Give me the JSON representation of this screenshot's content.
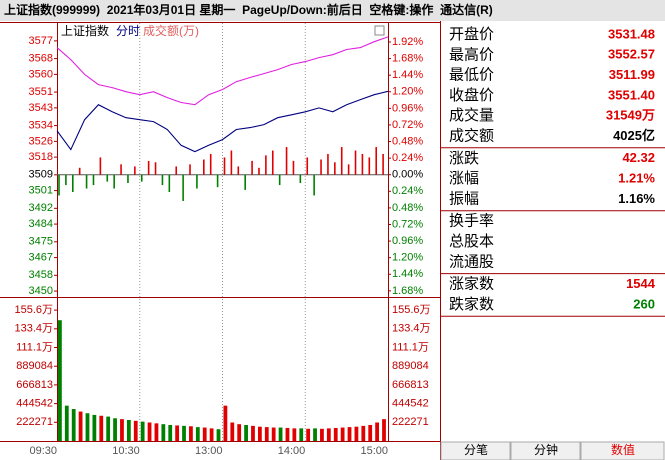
{
  "title_bar": "上证指数(999999)  2021年03月01日 星期一  PageUp/Down:前后日  空格键:操作  通达信(R)",
  "chart_data": [
    {
      "type": "line",
      "title": "上证指数",
      "x": [
        0,
        10,
        20,
        30,
        40,
        50,
        60,
        70,
        80,
        90,
        100,
        110,
        120,
        130,
        140,
        150,
        160,
        170,
        180,
        190,
        200,
        210,
        220,
        230,
        240
      ],
      "series": [
        {
          "name": "分时",
          "color": "#000080",
          "values": [
            3531.4,
            3521.8,
            3537,
            3544.6,
            3541,
            3538,
            3537,
            3536,
            3532,
            3524,
            3520.8,
            3524,
            3526.9,
            3532,
            3533,
            3534.5,
            3538,
            3539.5,
            3541,
            3543,
            3541,
            3544.6,
            3547.2,
            3549.7,
            3551.4
          ]
        },
        {
          "color": "#e020e0",
          "values": [
            3573.6,
            3567.5,
            3560,
            3554.8,
            3553.3,
            3551.2,
            3549.7,
            3551.2,
            3548.2,
            3545.7,
            3544.6,
            3549.7,
            3552.3,
            3556.3,
            3558.4,
            3560.4,
            3562.4,
            3565,
            3566.5,
            3568.5,
            3570,
            3572.6,
            3573.6,
            3576.6,
            3579
          ]
        }
      ],
      "strength": {
        "x": [
          0,
          5,
          10,
          15,
          20,
          25,
          30,
          35,
          40,
          45,
          50,
          55,
          60,
          65,
          70,
          75,
          80,
          85,
          90,
          95,
          100,
          105,
          110,
          115,
          120,
          125,
          130,
          135,
          140,
          145,
          150,
          155,
          160,
          165,
          170,
          175,
          180,
          185,
          190,
          195,
          200,
          205,
          210,
          215,
          220,
          225,
          230,
          235
        ],
        "values": [
          -0.3,
          -0.15,
          -0.25,
          0.1,
          -0.2,
          -0.15,
          0.25,
          -0.1,
          -0.2,
          0.15,
          -0.12,
          0.12,
          -0.1,
          0.2,
          0.18,
          -0.15,
          -0.25,
          0.12,
          -0.38,
          0.15,
          -0.2,
          0.22,
          0.3,
          -0.18,
          0.25,
          0.35,
          0.12,
          -0.22,
          0.2,
          0.1,
          0.28,
          0.35,
          -0.15,
          0.4,
          0.2,
          -0.12,
          0.25,
          -0.3,
          0.22,
          0.3,
          0.18,
          0.4,
          0.15,
          0.35,
          0.3,
          0.25,
          0.4,
          0.3
        ]
      },
      "up_color": "#e00000",
      "down_color": "#008000",
      "xlim": [
        0,
        240
      ],
      "ylim": [
        3448,
        3581
      ],
      "yticks": [
        3577,
        3568,
        3560,
        3551,
        3543,
        3534,
        3526,
        3518,
        3509,
        3501,
        3492,
        3484,
        3475,
        3467,
        3458,
        3450
      ],
      "y2lim": [
        -1.74,
        2.05
      ],
      "y2ticks": [
        {
          "value": 1.92,
          "label": "1.92%"
        },
        {
          "value": 1.68,
          "label": "1.68%"
        },
        {
          "value": 1.44,
          "label": "1.44%"
        },
        {
          "value": 1.2,
          "label": "1.20%"
        },
        {
          "value": 0.96,
          "label": "0.96%"
        },
        {
          "value": 0.72,
          "label": "0.72%"
        },
        {
          "value": 0.48,
          "label": "0.48%"
        },
        {
          "value": 0.24,
          "label": "0.24%"
        },
        {
          "value": 0,
          "label": "0.00%"
        },
        {
          "value": -0.24,
          "label": "0.24%"
        },
        {
          "value": -0.48,
          "label": "0.48%"
        },
        {
          "value": -0.72,
          "label": "0.72%"
        },
        {
          "value": -0.96,
          "label": "0.96%"
        },
        {
          "value": -1.2,
          "label": "1.20%"
        },
        {
          "value": -1.44,
          "label": "1.44%"
        },
        {
          "value": -1.68,
          "label": "1.68%"
        }
      ]
    },
    {
      "type": "bar",
      "title": "成交额(万)",
      "color": "#e06060",
      "x": [
        0,
        5,
        10,
        15,
        20,
        25,
        30,
        35,
        40,
        45,
        50,
        55,
        60,
        65,
        70,
        75,
        80,
        85,
        90,
        95,
        100,
        105,
        110,
        115,
        120,
        125,
        130,
        135,
        140,
        145,
        150,
        155,
        160,
        165,
        170,
        175,
        180,
        185,
        190,
        195,
        200,
        205,
        210,
        215,
        220,
        225,
        230,
        235
      ],
      "values": [
        1436000,
        420000,
        380000,
        350000,
        330000,
        310000,
        300000,
        290000,
        270000,
        260000,
        250000,
        240000,
        230000,
        220000,
        210000,
        200000,
        190000,
        185000,
        180000,
        175000,
        165000,
        160000,
        150000,
        140000,
        420000,
        220000,
        200000,
        190000,
        180000,
        170000,
        165000,
        160000,
        160000,
        155000,
        150000,
        150000,
        145000,
        150000,
        145000,
        150000,
        155000,
        160000,
        165000,
        170000,
        180000,
        190000,
        220000,
        260000
      ],
      "xlim": [
        0,
        240
      ],
      "ylim": [
        0,
        1700000
      ],
      "yticks": [
        {
          "value": 1555897,
          "label": "155.6万"
        },
        {
          "value": 1333626,
          "label": "133.4万"
        },
        {
          "value": 1111355,
          "label": "111.1万"
        },
        889084,
        666813,
        444542,
        222271
      ],
      "xticks": [
        {
          "value": 0,
          "label": "09:30"
        },
        {
          "value": 60,
          "label": "10:30"
        },
        {
          "value": 120,
          "label": "13:00"
        },
        {
          "value": 180,
          "label": "14:00"
        },
        {
          "value": 240,
          "label": "15:00"
        }
      ]
    }
  ],
  "info_panel": [
    [
      {
        "label": "开盘价",
        "value": "3531.48",
        "color": "#e00000"
      },
      {
        "label": "最高价",
        "value": "3552.57",
        "color": "#e00000"
      },
      {
        "label": "最低价",
        "value": "3511.99",
        "color": "#e00000"
      },
      {
        "label": "收盘价",
        "value": "3551.40",
        "color": "#e00000"
      },
      {
        "label": "成交量",
        "value": "31549万",
        "color": "#e00000"
      },
      {
        "label": "成交额",
        "value": "4025亿",
        "color": "#000000"
      }
    ],
    [
      {
        "label": "涨跌",
        "value": "42.32",
        "color": "#e00000"
      },
      {
        "label": "涨幅",
        "value": "1.21%",
        "color": "#e00000"
      },
      {
        "label": "振幅",
        "value": "1.16%",
        "color": "#000000"
      }
    ],
    [
      {
        "label": "换手率"
      },
      {
        "label": "总股本"
      },
      {
        "label": "流通股"
      }
    ],
    [
      {
        "label": "涨家数",
        "value": "1544",
        "color": "#e00000"
      },
      {
        "label": "跌家数",
        "value": "260",
        "color": "#008000"
      }
    ]
  ],
  "tabs": [
    "分笔",
    "分钟",
    "数值"
  ],
  "active_tab": 2
}
